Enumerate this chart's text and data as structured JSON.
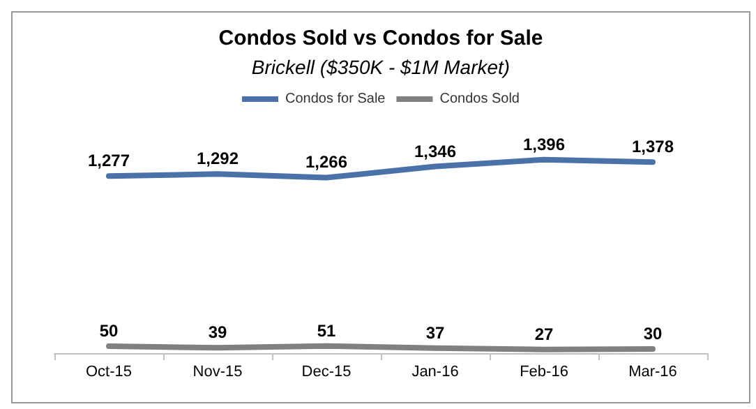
{
  "chart_data": {
    "type": "line",
    "title": "Condos Sold vs Condos for Sale",
    "subtitle": "Brickell ($350K - $1M Market)",
    "categories": [
      "Oct-15",
      "Nov-15",
      "Dec-15",
      "Jan-16",
      "Feb-16",
      "Mar-16"
    ],
    "series": [
      {
        "name": "Condos for Sale",
        "color": "#4a72a8",
        "values": [
          1277,
          1292,
          1266,
          1346,
          1396,
          1378
        ],
        "value_labels": [
          "1,277",
          "1,292",
          "1,266",
          "1,346",
          "1,396",
          "1,378"
        ]
      },
      {
        "name": "Condos Sold",
        "color": "#808080",
        "values": [
          50,
          39,
          51,
          37,
          27,
          30
        ],
        "value_labels": [
          "50",
          "39",
          "51",
          "37",
          "27",
          "30"
        ]
      }
    ],
    "legend": "top",
    "grid": false,
    "marker": "none",
    "line_style": "solid"
  }
}
